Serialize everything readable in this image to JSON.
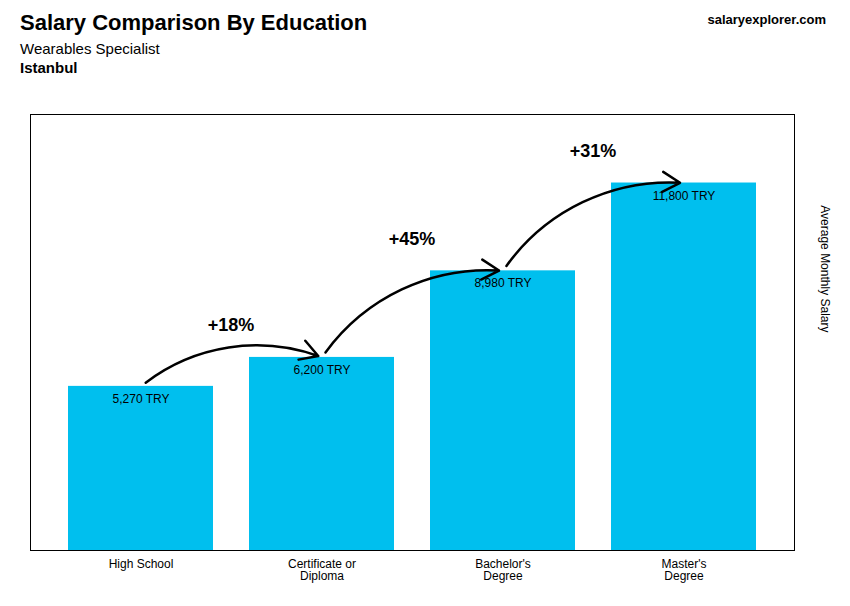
{
  "chart_data": {
    "type": "bar",
    "title": "Salary Comparison By Education",
    "subtitle": "Wearables Specialist",
    "city": "Istanbul",
    "source": [
      "salary",
      "explorer",
      ".com"
    ],
    "ylabel": "Average Monthly Salary",
    "categories": [
      "High School",
      "Certificate or\nDiploma",
      "Bachelor's\nDegree",
      "Master's\nDegree"
    ],
    "values": [
      5270,
      6200,
      8980,
      11800
    ],
    "value_labels": [
      "5,270 TRY",
      "6,200 TRY",
      "8,980 TRY",
      "11,800 TRY"
    ],
    "data_labels": true,
    "annotations": [
      "+18%",
      "+45%",
      "+31%"
    ],
    "color": "#00BFEE",
    "ylim": [
      0,
      14000
    ],
    "tick_labels": "x",
    "grid": false
  }
}
